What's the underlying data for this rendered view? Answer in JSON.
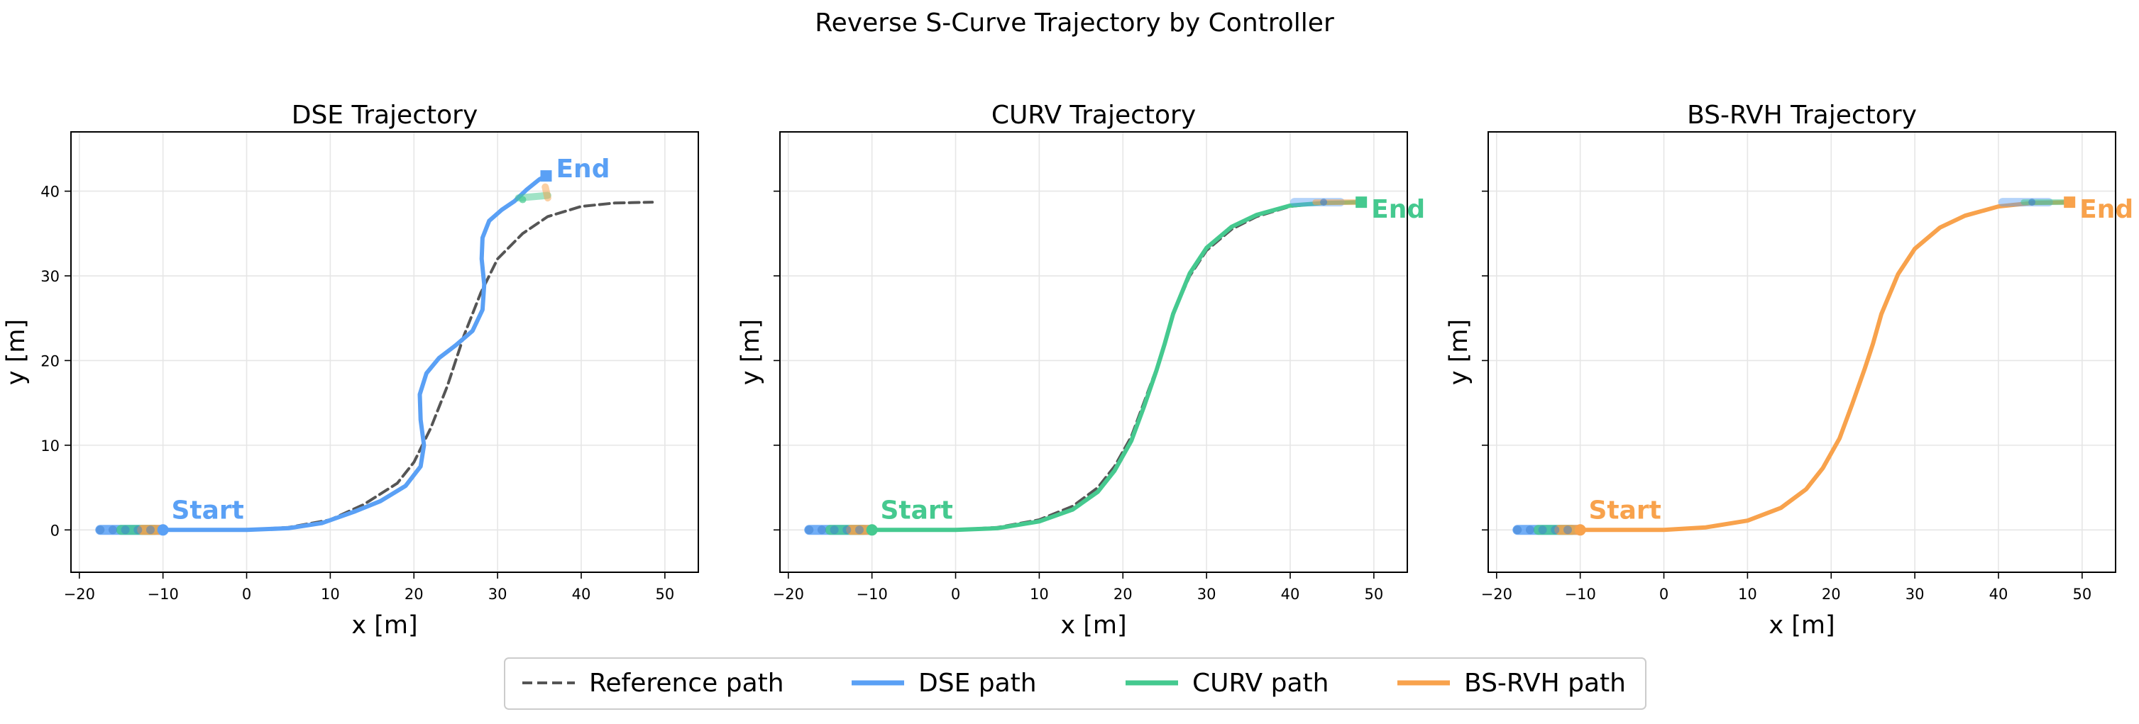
{
  "figure": {
    "suptitle": "Reverse S-Curve Trajectory by Controller"
  },
  "legend": {
    "items": [
      {
        "label": "Reference path",
        "color": "#555555",
        "dashed": true
      },
      {
        "label": "DSE path",
        "color": "#5aa0f5",
        "dashed": false
      },
      {
        "label": "CURV path",
        "color": "#45c98f",
        "dashed": false
      },
      {
        "label": "BS-RVH path",
        "color": "#f8a24c",
        "dashed": false
      }
    ],
    "placement": "bottom-center"
  },
  "chart_data": [
    {
      "type": "line",
      "title": "DSE Trajectory",
      "xlabel": "x [m]",
      "ylabel": "y [m]",
      "xlim": [
        -21,
        54
      ],
      "ylim": [
        -5,
        47
      ],
      "xticks": [
        -20,
        -10,
        0,
        10,
        20,
        30,
        40,
        50
      ],
      "yticks": [
        0,
        10,
        20,
        30,
        40
      ],
      "grid": true,
      "color": "#5aa0f5",
      "start_label": "Start",
      "end_label": "End",
      "series": [
        {
          "name": "Reference path",
          "style": "dashed",
          "color": "#555555",
          "x": [
            -10,
            0,
            5,
            10,
            14,
            18,
            20,
            22,
            24,
            25,
            26,
            28,
            30,
            33,
            36,
            40,
            44,
            48.5
          ],
          "y": [
            0,
            0,
            0.3,
            1.2,
            3,
            5.5,
            8,
            12,
            17,
            20,
            23,
            28,
            32,
            35,
            37,
            38.2,
            38.6,
            38.7
          ]
        },
        {
          "name": "DSE path",
          "style": "solid",
          "color": "#5aa0f5",
          "x": [
            -10,
            0,
            5,
            9,
            13,
            16,
            19,
            20.8,
            21.2,
            20.8,
            20.7,
            21.5,
            23,
            25,
            27,
            28.2,
            28.4,
            28.1,
            28.2,
            29,
            30.5,
            32,
            33.5,
            35,
            35.8
          ],
          "y": [
            0,
            0,
            0.2,
            0.8,
            2.2,
            3.4,
            5.2,
            7.5,
            10,
            13,
            16,
            18.5,
            20.3,
            21.8,
            23.5,
            26,
            29,
            32,
            34.5,
            36.5,
            37.8,
            38.8,
            40.2,
            41.4,
            41.8
          ]
        }
      ]
    },
    {
      "type": "line",
      "title": "CURV Trajectory",
      "xlabel": "x [m]",
      "ylabel": "y [m]",
      "xlim": [
        -21,
        54
      ],
      "ylim": [
        -5,
        47
      ],
      "xticks": [
        -20,
        -10,
        0,
        10,
        20,
        30,
        40,
        50
      ],
      "yticks": [
        0,
        10,
        20,
        30,
        40
      ],
      "grid": true,
      "color": "#45c98f",
      "start_label": "Start",
      "end_label": "End",
      "series": [
        {
          "name": "Reference path",
          "style": "dashed",
          "color": "#555555",
          "x": [
            -10,
            0,
            5,
            10,
            14,
            17,
            19,
            21,
            22.5,
            24,
            25,
            26,
            28,
            30,
            33,
            36,
            40,
            44,
            48.5
          ],
          "y": [
            0,
            0,
            0.3,
            1.2,
            2.8,
            5,
            7.5,
            11,
            15,
            19,
            22,
            25.5,
            30,
            33,
            35.5,
            37,
            38.2,
            38.6,
            38.7
          ]
        },
        {
          "name": "CURV path",
          "style": "solid",
          "color": "#45c98f",
          "x": [
            -10,
            0,
            5,
            10,
            14,
            17,
            19,
            21,
            22.5,
            24,
            25,
            26,
            28,
            30,
            33,
            36,
            40,
            44,
            48.5
          ],
          "y": [
            0,
            0,
            0.2,
            1.0,
            2.4,
            4.5,
            7,
            10.5,
            14.5,
            18.8,
            22,
            25.5,
            30.3,
            33.3,
            35.8,
            37.2,
            38.3,
            38.6,
            38.7
          ]
        }
      ]
    },
    {
      "type": "line",
      "title": "BS-RVH Trajectory",
      "xlabel": "x [m]",
      "ylabel": "y [m]",
      "xlim": [
        -21,
        54
      ],
      "ylim": [
        -5,
        47
      ],
      "xticks": [
        -20,
        -10,
        0,
        10,
        20,
        30,
        40,
        50
      ],
      "yticks": [
        0,
        10,
        20,
        30,
        40
      ],
      "grid": true,
      "color": "#f8a24c",
      "start_label": "Start",
      "end_label": "End",
      "series": [
        {
          "name": "BS-RVH path",
          "style": "solid",
          "color": "#f8a24c",
          "x": [
            -10,
            0,
            5,
            10,
            14,
            17,
            19,
            21,
            22.5,
            24,
            25,
            26,
            28,
            30,
            33,
            36,
            40,
            44,
            48.5
          ],
          "y": [
            0,
            0,
            0.3,
            1.1,
            2.6,
            4.8,
            7.3,
            10.8,
            14.8,
            19,
            22,
            25.5,
            30.2,
            33.2,
            35.7,
            37.1,
            38.2,
            38.6,
            38.7
          ]
        }
      ]
    }
  ]
}
